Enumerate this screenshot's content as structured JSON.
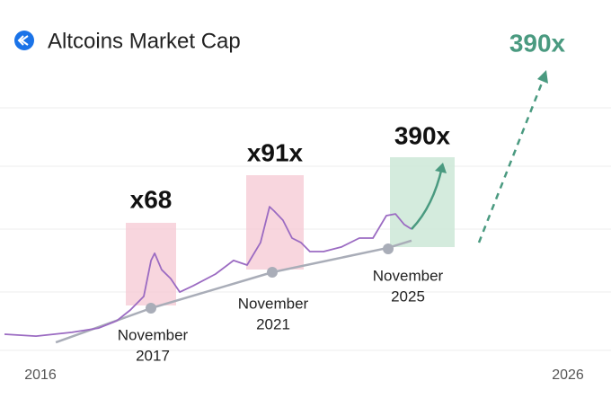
{
  "chart_data": {
    "type": "line",
    "title": "Altcoins Market Cap",
    "start_label": "2016",
    "end_label": "2026",
    "xlim": [
      2013,
      2030
    ],
    "ylim": [
      0,
      100
    ],
    "series": [
      {
        "color": "#9b6bc2",
        "x": [
          2013.09,
          2014.13,
          2015.31,
          2016.2,
          2016.79,
          2017.24,
          2017.68,
          2017.92,
          2018.04,
          2018.27,
          2018.57,
          2018.87,
          2019.31,
          2020.05,
          2020.64,
          2021.09,
          2021.53,
          2021.83,
          2021.98,
          2022.27,
          2022.57,
          2022.87,
          2023.16,
          2023.61,
          2024.2,
          2024.79,
          2025.24,
          2025.68,
          2025.98,
          2026.27,
          2026.51
        ],
        "values": [
          8.75,
          8.1,
          9.4,
          10.9,
          13.4,
          17.2,
          21.9,
          34.4,
          36.9,
          31.2,
          28.1,
          23.4,
          25.6,
          29.7,
          34.4,
          32.8,
          40.6,
          53.1,
          51.6,
          48.4,
          42.2,
          40.6,
          37.5,
          37.5,
          39.1,
          42.2,
          42.2,
          50,
          50.6,
          46.9,
          45.3
        ]
      },
      {
        "color": "#a9adb8",
        "x": [
          2014.78,
          2017.92,
          2021.92,
          2025.74,
          2026.51
        ],
        "values": [
          5.9,
          17.8,
          30.3,
          38.8,
          41.3
        ]
      }
    ],
    "annotations": [
      {
        "text": "x68"
      },
      {
        "text": "x91x"
      },
      {
        "text": "390x"
      },
      {
        "text": "390x"
      }
    ],
    "period_labels": [
      [
        "November",
        "2017"
      ],
      [
        "November",
        "2021"
      ],
      [
        "November",
        "2025"
      ]
    ]
  }
}
